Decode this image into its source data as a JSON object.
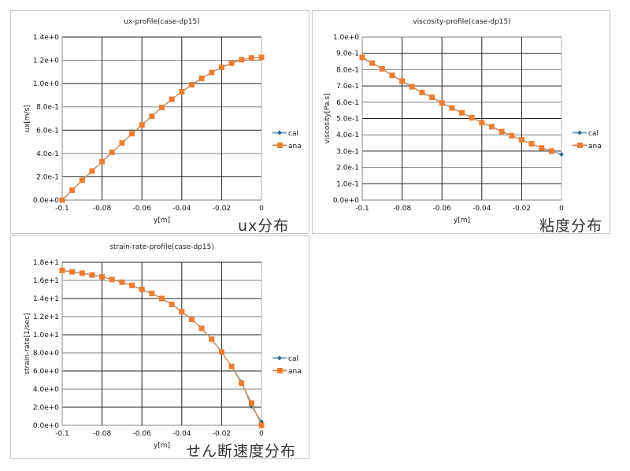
{
  "colors": {
    "cal": "#2e6b8f",
    "cal_line": "#6fa0c0",
    "ana": "#ed7d31",
    "ana_line": "#c98c5a",
    "grid_major": "#222222",
    "grid_alt": "#808080"
  },
  "captions": [
    "ux分布",
    "粘度分布",
    "せん断速度分布"
  ],
  "chart_data": [
    {
      "type": "line",
      "title": "ux-profile(case-dp15)",
      "xlabel": "y[m]",
      "ylabel": "ux[m/s]",
      "xlim": [
        -0.1,
        0
      ],
      "ylim": [
        0,
        1.4
      ],
      "grid": true,
      "legend_position": "right",
      "x_ticks": [
        "-0.1",
        "-0.08",
        "-0.06",
        "-0.04",
        "-0.02",
        "0"
      ],
      "y_ticks": [
        "0.0e+0",
        "2.0e-1",
        "4.0e-1",
        "6.0e-1",
        "8.0e-1",
        "1.0e+0",
        "1.2e+0",
        "1.4e+0"
      ],
      "x": [
        -0.1,
        -0.095,
        -0.09,
        -0.085,
        -0.08,
        -0.075,
        -0.07,
        -0.065,
        -0.06,
        -0.055,
        -0.05,
        -0.045,
        -0.04,
        -0.035,
        -0.03,
        -0.025,
        -0.02,
        -0.015,
        -0.01,
        -0.005,
        0
      ],
      "series": [
        {
          "name": "cal",
          "values": [
            0.0,
            0.085,
            0.17,
            0.25,
            0.33,
            0.41,
            0.49,
            0.57,
            0.645,
            0.72,
            0.795,
            0.865,
            0.93,
            0.99,
            1.045,
            1.095,
            1.14,
            1.175,
            1.205,
            1.22,
            1.225
          ]
        },
        {
          "name": "ana",
          "values": [
            0.0,
            0.085,
            0.17,
            0.25,
            0.33,
            0.41,
            0.49,
            0.57,
            0.645,
            0.72,
            0.795,
            0.865,
            0.93,
            0.99,
            1.045,
            1.095,
            1.14,
            1.175,
            1.205,
            1.22,
            1.225
          ]
        }
      ]
    },
    {
      "type": "line",
      "title": "viscosity-profile(case-dp15)",
      "xlabel": "y[m]",
      "ylabel": "viscosity[Pa.s]",
      "xlim": [
        -0.1,
        0
      ],
      "ylim": [
        0,
        1.0
      ],
      "grid": true,
      "legend_position": "right",
      "x_ticks": [
        "-0.1",
        "-0.08",
        "-0.06",
        "-0.04",
        "-0.02",
        "0"
      ],
      "y_ticks": [
        "0.0e+0",
        "1.0e-1",
        "2.0e-1",
        "3.0e-1",
        "4.0e-1",
        "5.0e-1",
        "6.0e-1",
        "7.0e-1",
        "8.0e-1",
        "9.0e-1",
        "1.0e+0"
      ],
      "x": [
        -0.1,
        -0.095,
        -0.09,
        -0.085,
        -0.08,
        -0.075,
        -0.07,
        -0.065,
        -0.06,
        -0.055,
        -0.05,
        -0.045,
        -0.04,
        -0.035,
        -0.03,
        -0.025,
        -0.02,
        -0.015,
        -0.01,
        -0.005,
        0
      ],
      "series": [
        {
          "name": "cal",
          "values": [
            0.87,
            0.84,
            0.805,
            0.765,
            0.73,
            0.695,
            0.66,
            0.63,
            0.595,
            0.565,
            0.535,
            0.505,
            0.475,
            0.45,
            0.42,
            0.395,
            0.37,
            0.345,
            0.32,
            0.3,
            0.28
          ]
        },
        {
          "name": "ana",
          "values": [
            0.875,
            0.84,
            0.805,
            0.765,
            0.73,
            0.695,
            0.66,
            0.63,
            0.595,
            0.565,
            0.535,
            0.505,
            0.475,
            0.45,
            0.42,
            0.395,
            0.37,
            0.345,
            0.32,
            0.3,
            null
          ]
        }
      ]
    },
    {
      "type": "line",
      "title": "strain-rate-profile(case-dp15)",
      "xlabel": "y[m]",
      "ylabel": "strain-rate[1/sec]",
      "xlim": [
        -0.1,
        0
      ],
      "ylim": [
        0,
        18
      ],
      "grid": true,
      "legend_position": "right",
      "x_ticks": [
        "-0.1",
        "-0.08",
        "-0.06",
        "-0.04",
        "-0.02",
        "0"
      ],
      "y_ticks": [
        "0.0e+0",
        "2.0e+0",
        "4.0e+0",
        "6.0e+0",
        "8.0e+0",
        "1.0e+1",
        "1.2e+1",
        "1.4e+1",
        "1.6e+1",
        "1.8e+1"
      ],
      "x": [
        -0.1,
        -0.095,
        -0.09,
        -0.085,
        -0.08,
        -0.075,
        -0.07,
        -0.065,
        -0.06,
        -0.055,
        -0.05,
        -0.045,
        -0.04,
        -0.035,
        -0.03,
        -0.025,
        -0.02,
        -0.015,
        -0.01,
        -0.005,
        0
      ],
      "series": [
        {
          "name": "cal",
          "values": [
            17.1,
            16.95,
            16.8,
            16.6,
            16.4,
            16.1,
            15.8,
            15.45,
            15.0,
            14.55,
            14.0,
            13.35,
            12.6,
            11.7,
            10.7,
            9.5,
            8.1,
            6.5,
            4.8,
            2.1,
            0.4
          ]
        },
        {
          "name": "ana",
          "values": [
            17.1,
            16.95,
            16.8,
            16.6,
            16.4,
            16.1,
            15.8,
            15.45,
            15.0,
            14.55,
            14.0,
            13.35,
            12.55,
            11.7,
            10.7,
            9.5,
            8.1,
            6.5,
            4.65,
            2.45,
            0.0
          ]
        }
      ]
    }
  ]
}
